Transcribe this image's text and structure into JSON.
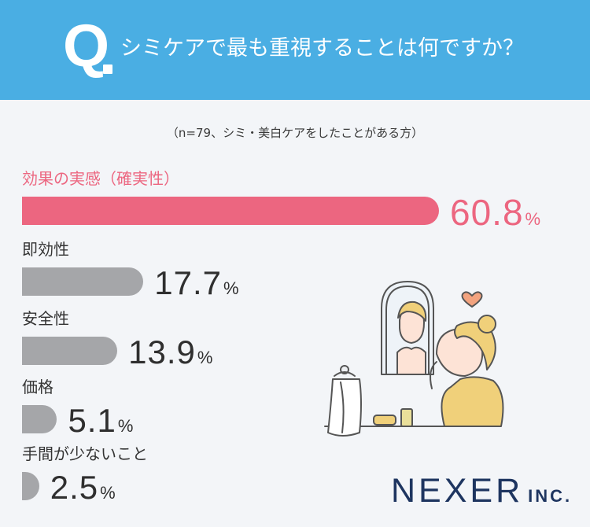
{
  "header": {
    "q_letter": "Q",
    "question": "シミケアで最も重視することは何ですか？"
  },
  "note": "（n=79、シミ・美白ケアをしたことがある方）",
  "colors": {
    "header": "#4aaee3",
    "highlight": "#ec6680",
    "bar": "#a5a6a9",
    "background": "#f3f5f8"
  },
  "chart_data": {
    "type": "bar",
    "orientation": "horizontal",
    "unit": "%",
    "categories": [
      "効果の実感（確実性）",
      "即効性",
      "安全性",
      "価格",
      "手間が少ないこと"
    ],
    "values": [
      60.8,
      17.7,
      13.9,
      5.1,
      2.5
    ],
    "value_labels": [
      "60.8",
      "17.7",
      "13.9",
      "5.1",
      "2.5"
    ],
    "highlighted_index": 0
  },
  "logo": {
    "main": "NEXER",
    "suffix": "INC."
  }
}
